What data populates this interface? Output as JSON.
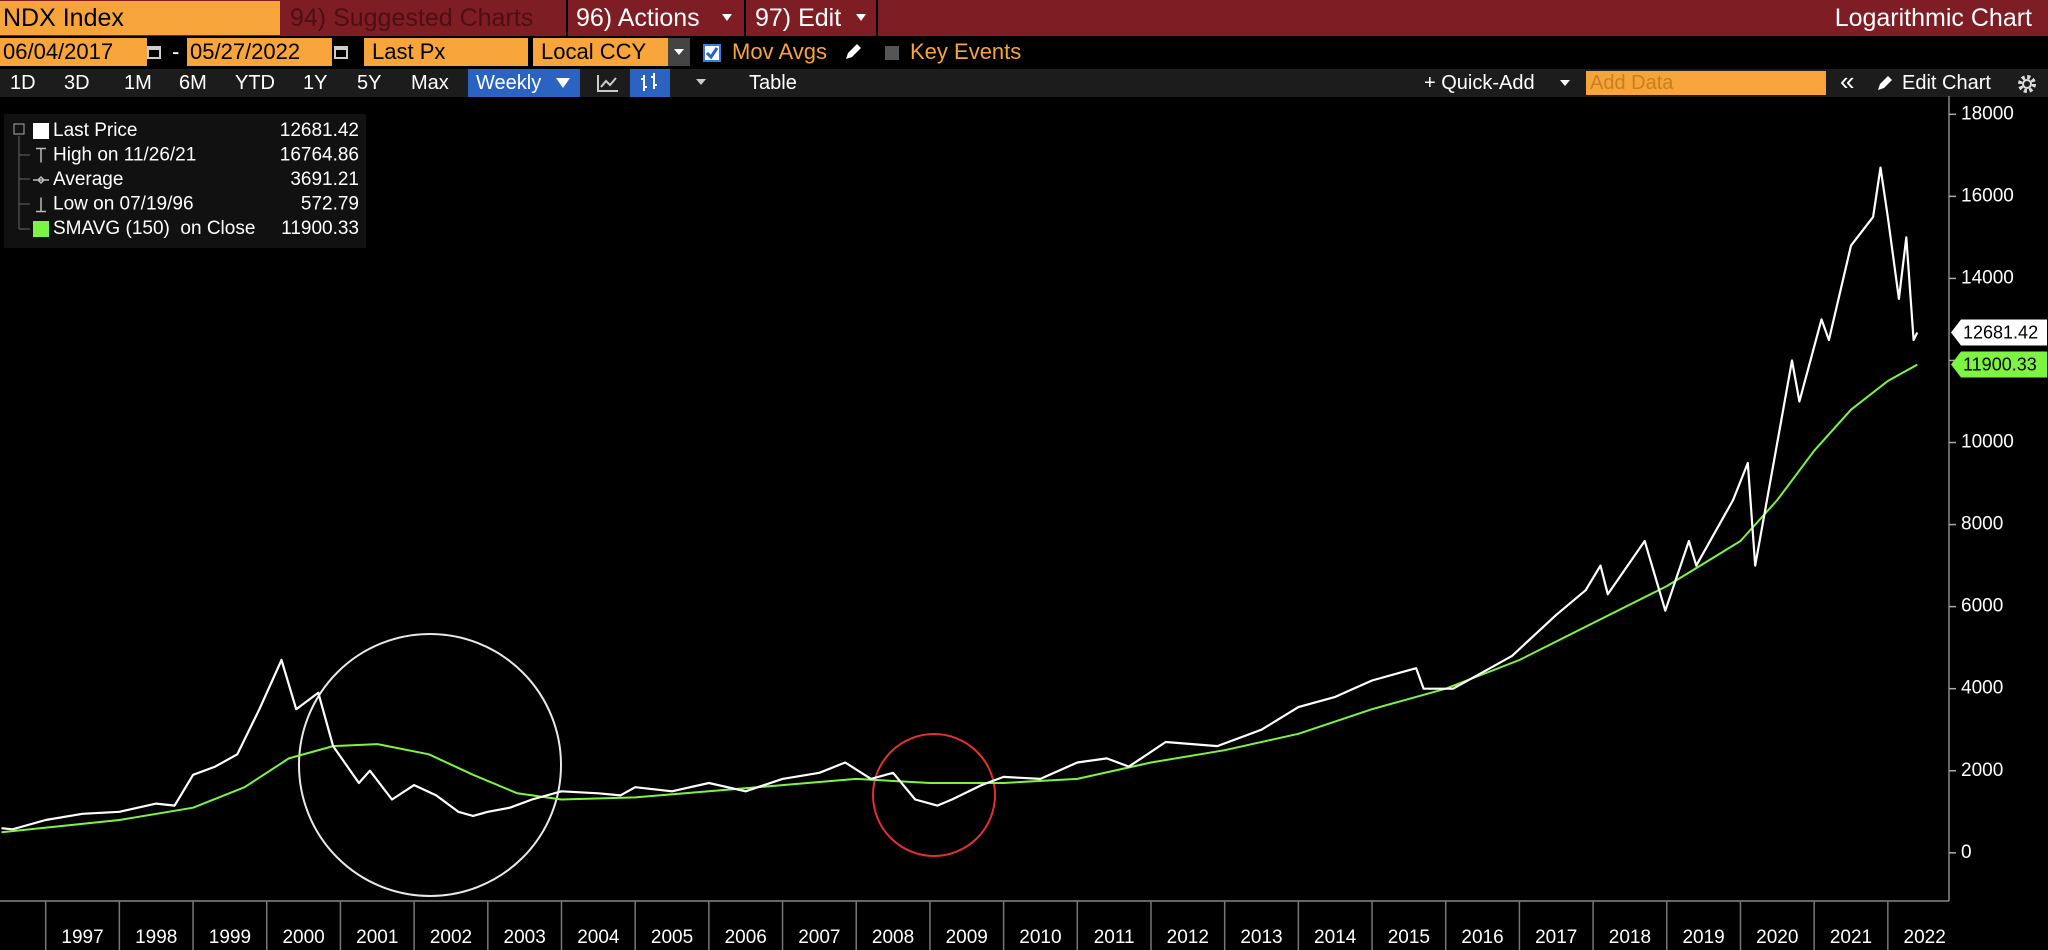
{
  "ui": {
    "ticker": "NDX Index",
    "suggested": "94) Suggested Charts",
    "actions": "96) Actions",
    "edit": "97) Edit",
    "chart_mode": "Logarithmic Chart",
    "start_date": "06/04/2017",
    "date_sep": "-",
    "end_date": "05/27/2022",
    "field": "Last Px",
    "currency": "Local CCY",
    "mov_avgs": "Mov Avgs",
    "key_events": "Key Events",
    "periods": [
      "1D",
      "3D",
      "1M",
      "6M",
      "YTD",
      "1Y",
      "5Y",
      "Max"
    ],
    "frequency": "Weekly",
    "table": "Table",
    "quick_add": "+ Quick-Add",
    "add_data": "Add Data",
    "collapse": "«",
    "edit_chart": "Edit Chart"
  },
  "chart_data": {
    "type": "line",
    "xlim": [
      1996.38,
      2022.83
    ],
    "xticks": [
      1997,
      1998,
      1999,
      2000,
      2001,
      2002,
      2003,
      2004,
      2005,
      2006,
      2007,
      2008,
      2009,
      2010,
      2011,
      2012,
      2013,
      2014,
      2015,
      2016,
      2017,
      2018,
      2019,
      2020,
      2021,
      2022
    ],
    "ylim": [
      -1175,
      18300
    ],
    "yticks": [
      0,
      2000,
      4000,
      6000,
      8000,
      10000,
      12000,
      14000,
      16000,
      18000
    ],
    "series": [
      {
        "name": "Last Price",
        "color": "#ffffff",
        "x": [
          1996.4,
          1996.55,
          1997.0,
          1997.5,
          1998.0,
          1998.5,
          1998.75,
          1999.0,
          1999.3,
          1999.6,
          1999.9,
          2000.2,
          2000.4,
          2000.7,
          2000.9,
          2001.25,
          2001.4,
          2001.7,
          2002.0,
          2002.3,
          2002.6,
          2002.8,
          2003.0,
          2003.3,
          2003.6,
          2004.0,
          2004.5,
          2004.8,
          2005.0,
          2005.5,
          2006.0,
          2006.5,
          2007.0,
          2007.5,
          2007.85,
          2008.2,
          2008.5,
          2008.8,
          2009.1,
          2009.3,
          2009.7,
          2010.0,
          2010.5,
          2011.0,
          2011.4,
          2011.7,
          2012.2,
          2012.9,
          2013.5,
          2014.0,
          2014.5,
          2015.0,
          2015.6,
          2015.7,
          2016.1,
          2016.5,
          2016.9,
          2017.5,
          2017.9,
          2018.1,
          2018.2,
          2018.7,
          2018.98,
          2019.3,
          2019.4,
          2019.9,
          2020.1,
          2020.2,
          2020.5,
          2020.7,
          2020.8,
          2021.1,
          2021.2,
          2021.5,
          2021.8,
          2021.9,
          2022.0,
          2022.15,
          2022.25,
          2022.35,
          2022.4
        ],
        "values": [
          600,
          573,
          800,
          950,
          1000,
          1200,
          1150,
          1900,
          2100,
          2400,
          3500,
          4700,
          3500,
          3900,
          2600,
          1700,
          2000,
          1300,
          1650,
          1400,
          1000,
          900,
          1000,
          1100,
          1300,
          1500,
          1450,
          1400,
          1600,
          1500,
          1700,
          1500,
          1800,
          1950,
          2200,
          1800,
          1950,
          1300,
          1150,
          1300,
          1650,
          1850,
          1800,
          2200,
          2300,
          2100,
          2700,
          2600,
          3000,
          3550,
          3800,
          4200,
          4500,
          4000,
          4000,
          4400,
          4800,
          5800,
          6400,
          7000,
          6300,
          7600,
          5900,
          7600,
          7000,
          8600,
          9500,
          7000,
          10000,
          12000,
          11000,
          13000,
          12500,
          14800,
          15500,
          16700,
          15500,
          13500,
          15000,
          12500,
          12681.42
        ]
      },
      {
        "name": "SMAVG (150)  on Close",
        "color": "#7df442",
        "x": [
          1996.4,
          1998.0,
          1999.0,
          1999.7,
          2000.3,
          2000.9,
          2001.5,
          2002.2,
          2002.8,
          2003.4,
          2004.0,
          2005.0,
          2006.0,
          2007.0,
          2008.0,
          2009.0,
          2010.0,
          2011.0,
          2012.0,
          2013.0,
          2014.0,
          2015.0,
          2016.0,
          2017.0,
          2018.0,
          2019.0,
          2020.0,
          2020.5,
          2021.0,
          2021.5,
          2022.0,
          2022.4
        ],
        "values": [
          500,
          800,
          1100,
          1600,
          2300,
          2600,
          2650,
          2400,
          1900,
          1450,
          1300,
          1350,
          1500,
          1650,
          1800,
          1700,
          1700,
          1800,
          2200,
          2500,
          2900,
          3500,
          4000,
          4700,
          5600,
          6500,
          7600,
          8600,
          9800,
          10800,
          11500,
          11900.33
        ]
      }
    ],
    "stats": [
      {
        "label": "High on 11/26/21",
        "value": 16764.86
      },
      {
        "label": "Average",
        "value": 3691.21
      },
      {
        "label": "Low on 07/19/96",
        "value": 572.79
      }
    ]
  }
}
